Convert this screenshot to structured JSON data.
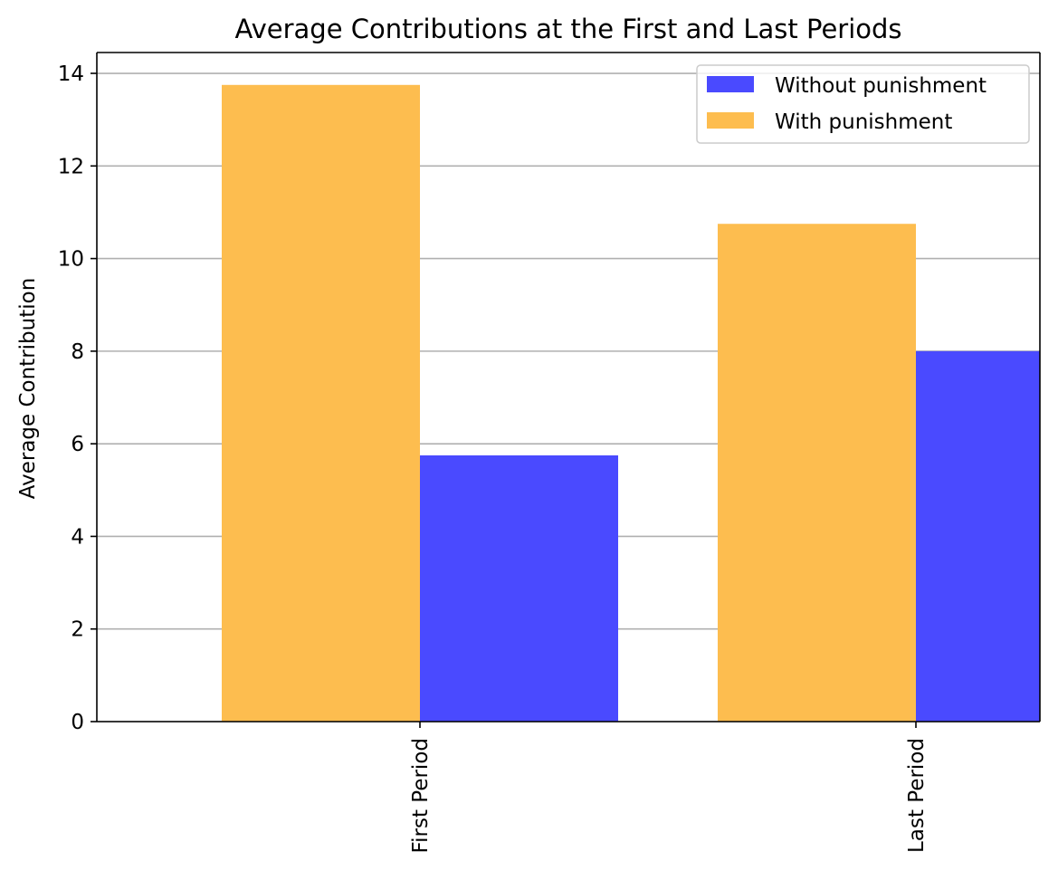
{
  "chart_data": {
    "type": "bar",
    "title": "Average Contributions at the First and Last Periods",
    "xlabel": "",
    "ylabel": "Average Contribution",
    "categories": [
      "First Period",
      "Last Period"
    ],
    "series": [
      {
        "name": "Without punishment",
        "values": [
          5.75,
          8.0
        ],
        "color": "#4a4aff"
      },
      {
        "name": "With punishment",
        "values": [
          13.75,
          10.75
        ],
        "color": "#fdbd4f"
      }
    ],
    "ylim": [
      0,
      14.45
    ],
    "yticks": [
      "0",
      "2",
      "4",
      "6",
      "8",
      "10",
      "12",
      "14"
    ],
    "grid": "y-major",
    "legend_position": "upper right",
    "xtick_rotation": "vertical"
  }
}
